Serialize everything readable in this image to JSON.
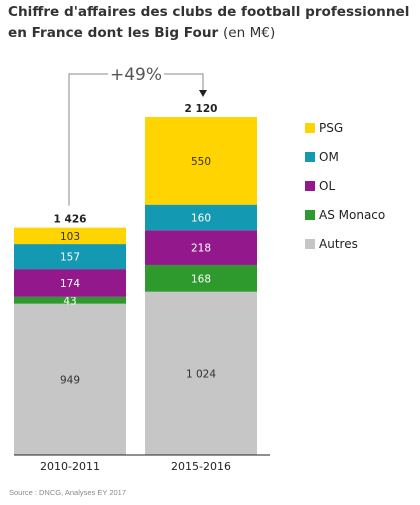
{
  "title": {
    "line1": "Chiffre d'affaires des clubs de football professionnel",
    "line2": "en France dont les Big Four",
    "unit": "(en M€)"
  },
  "chart_data": {
    "type": "bar",
    "stacked": true,
    "categories": [
      "2010-2011",
      "2015-2016"
    ],
    "totals": [
      "1 426",
      "2 120"
    ],
    "series": [
      {
        "name": "Autres",
        "color": "#c6c6c6",
        "label_color": "#333333",
        "values": [
          949,
          1024
        ],
        "labels": [
          "949",
          "1 024"
        ]
      },
      {
        "name": "AS Monaco",
        "color": "#2e9a2e",
        "label_color": "#ffffff",
        "values": [
          43,
          168
        ],
        "labels": [
          "43",
          "168"
        ]
      },
      {
        "name": "OL",
        "color": "#93188c",
        "label_color": "#ffffff",
        "values": [
          174,
          218
        ],
        "labels": [
          "174",
          "218"
        ]
      },
      {
        "name": "OM",
        "color": "#1399b2",
        "label_color": "#ffffff",
        "values": [
          157,
          160
        ],
        "labels": [
          "157",
          "160"
        ]
      },
      {
        "name": "PSG",
        "color": "#ffd400",
        "label_color": "#333333",
        "values": [
          103,
          550
        ],
        "labels": [
          "103",
          "550"
        ]
      }
    ],
    "legend_order": [
      "PSG",
      "OM",
      "OL",
      "AS Monaco",
      "Autres"
    ],
    "legend_position": "right",
    "annotation": "+49%",
    "ylim": [
      0,
      2120
    ]
  },
  "source": "Source : DNCG, Analyses EY 2017"
}
